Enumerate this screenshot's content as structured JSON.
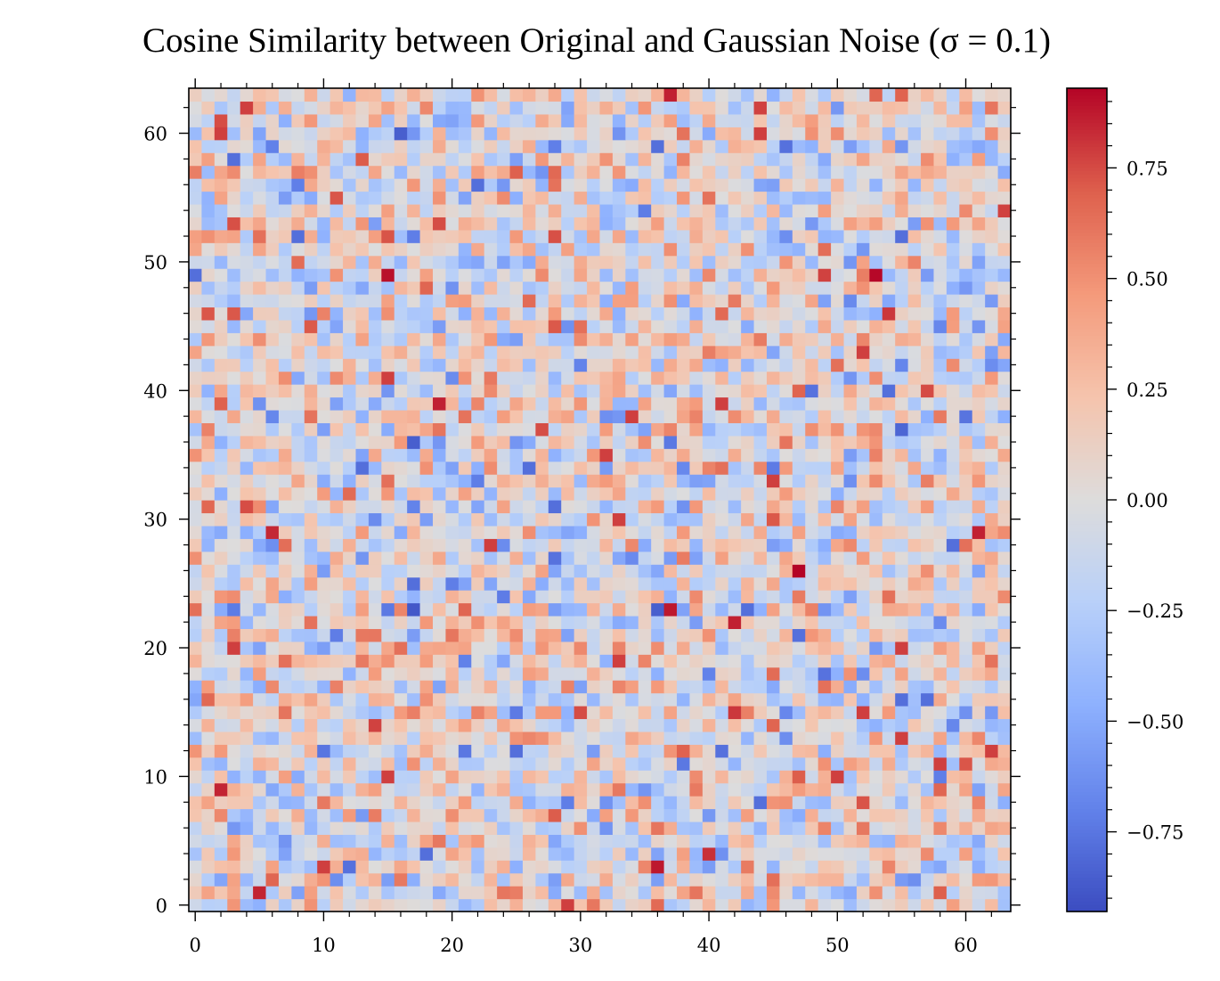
{
  "chart_data": {
    "type": "heatmap",
    "title": "Cosine Similarity between Original and Gaussian Noise (σ = 0.1)",
    "xlabel": "",
    "ylabel": "",
    "rows": 64,
    "cols": 64,
    "xlim": [
      -0.5,
      63.5
    ],
    "ylim": [
      -0.5,
      63.5
    ],
    "origin": "lower",
    "x_ticks": [
      0,
      10,
      20,
      30,
      40,
      50,
      60
    ],
    "x_tick_labels": [
      "0",
      "10",
      "20",
      "30",
      "40",
      "50",
      "60"
    ],
    "y_ticks": [
      0,
      10,
      20,
      30,
      40,
      50,
      60
    ],
    "y_tick_labels": [
      "0",
      "10",
      "20",
      "30",
      "40",
      "50",
      "60"
    ],
    "colormap": "coolwarm",
    "colorbar": {
      "vmin": -0.93,
      "vmax": 0.93,
      "ticks": [
        -0.75,
        -0.5,
        -0.25,
        0.0,
        0.25,
        0.5,
        0.75
      ],
      "tick_labels": [
        "−0.75",
        "−0.50",
        "−0.25",
        "0.00",
        "0.25",
        "0.50",
        "0.75"
      ],
      "low_color": "#3b4cc0",
      "mid_color": "#dddcdc",
      "high_color": "#b40426"
    },
    "values_note": "",
    "highlighted_cells": [
      {
        "x": 5,
        "y": 1,
        "value": 0.85
      },
      {
        "x": 36,
        "y": 3,
        "value": 0.88
      },
      {
        "x": 40,
        "y": 4,
        "value": 0.82
      },
      {
        "x": 2,
        "y": 9,
        "value": 0.85
      },
      {
        "x": 42,
        "y": 15,
        "value": 0.8
      },
      {
        "x": 42,
        "y": 22,
        "value": 0.86
      },
      {
        "x": 37,
        "y": 23,
        "value": 0.88
      },
      {
        "x": 47,
        "y": 26,
        "value": 0.93
      },
      {
        "x": 6,
        "y": 29,
        "value": 0.84
      },
      {
        "x": 61,
        "y": 29,
        "value": 0.86
      },
      {
        "x": 19,
        "y": 39,
        "value": 0.86
      },
      {
        "x": 15,
        "y": 49,
        "value": 0.9
      },
      {
        "x": 53,
        "y": 49,
        "value": 0.92
      },
      {
        "x": 54,
        "y": 46,
        "value": 0.8
      },
      {
        "x": 37,
        "y": 63,
        "value": 0.86
      },
      {
        "x": 17,
        "y": 23,
        "value": -0.88
      },
      {
        "x": 17,
        "y": 36,
        "value": -0.85
      },
      {
        "x": 36,
        "y": 23,
        "value": -0.85
      },
      {
        "x": 16,
        "y": 60,
        "value": -0.85
      },
      {
        "x": 55,
        "y": 37,
        "value": -0.82
      }
    ]
  }
}
